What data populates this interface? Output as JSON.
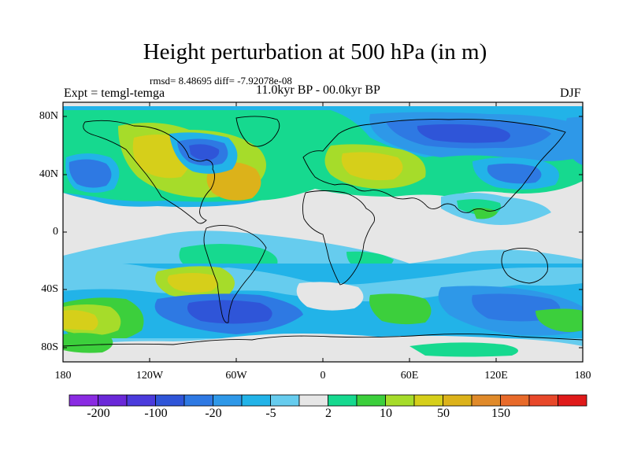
{
  "title": "Height perturbation at 500 hPa (in m)",
  "stats": "rmsd= 8.48695 diff= -7.92078e-08",
  "experiment": "Expt = temgl-temga",
  "period": "11.0kyr BP - 00.0kyr BP",
  "season": "DJF",
  "map": {
    "lat_labels": [
      "80N",
      "40N",
      "0",
      "40S",
      "80S"
    ],
    "lon_labels": [
      "180",
      "120W",
      "60W",
      "0",
      "60E",
      "120E",
      "180"
    ]
  },
  "colorbar": {
    "colors": [
      "#8a2be2",
      "#6a28d8",
      "#4b3bdc",
      "#2f55d8",
      "#2e79e3",
      "#2e98e8",
      "#22b3e8",
      "#66ccee",
      "#e6e6e6",
      "#16d98f",
      "#3ccf3c",
      "#a6dc2a",
      "#d6cf1a",
      "#dcb21a",
      "#e08a2a",
      "#e86a2a",
      "#e8482a",
      "#e01a1a"
    ],
    "labels": [
      "-200",
      "-100",
      "-20",
      "-5",
      "2",
      "10",
      "50",
      "150"
    ]
  }
}
